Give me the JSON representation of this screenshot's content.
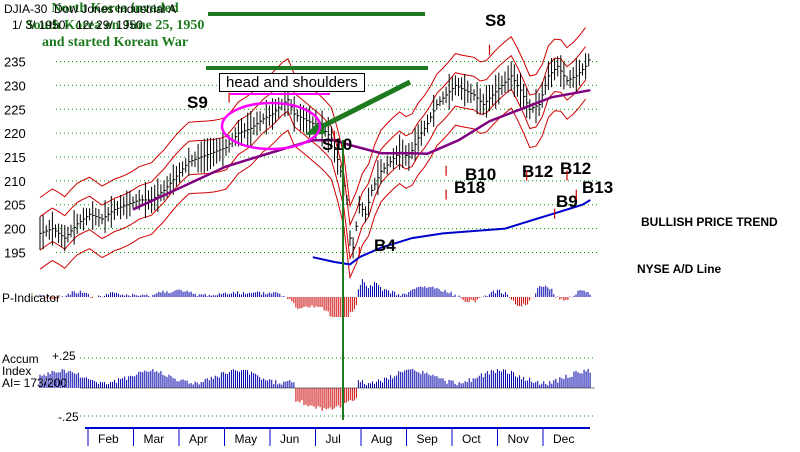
{
  "header": {
    "line1": "DJIA-30  Dow Jones Industrial A",
    "line2": "1/ 3/ 1950-  12/ 29/ 1950"
  },
  "annotation_note": {
    "line1": "North Korea invaded",
    "line2": "South Korea on June 25, 1950",
    "line3": "and started Korean War"
  },
  "pattern_label": "head and shoulders",
  "signal_labels": [
    "S8",
    "S9",
    "S10",
    "B4",
    "B10",
    "B18",
    "B12",
    "B12",
    "B9",
    "B13"
  ],
  "side_labels": {
    "trend": "BULLISH PRICE TREND",
    "ad_line": "NYSE A/D Line"
  },
  "panel_labels": {
    "pindicator": "P-Indicator",
    "accum": "Accum\nIndex\nAI= 173/200",
    "accum_top": "+.25",
    "accum_bottom": "-.25"
  },
  "colors": {
    "price": "#000000",
    "bands": "#d00000",
    "moving_average": "#800080",
    "ad_line": "#0000cc",
    "positive_bars": "#0000aa",
    "negative_bars": "#cc0000",
    "annotation_green": "#1e7a1e",
    "circle_magenta": "#ff00ff",
    "grid_green": "#009900"
  },
  "chart_data": {
    "type": "line",
    "title": "DJIA-30  Dow Jones Industrial A",
    "x": [
      "Feb",
      "Mar",
      "Apr",
      "May",
      "Jun",
      "Jul",
      "Aug",
      "Sep",
      "Oct",
      "Nov",
      "Dec"
    ],
    "y_ticks": [
      195,
      200,
      205,
      210,
      215,
      220,
      225,
      230,
      235
    ],
    "ylim": [
      193,
      237
    ],
    "grid": true,
    "series": [
      {
        "values": [
          [
            0,
            199
          ],
          [
            8,
            200
          ],
          [
            16,
            198
          ],
          [
            24,
            201
          ],
          [
            32,
            203
          ],
          [
            40,
            202
          ],
          [
            48,
            204
          ],
          [
            56,
            205
          ],
          [
            64,
            206
          ],
          [
            72,
            206
          ],
          [
            80,
            208
          ],
          [
            88,
            211
          ],
          [
            96,
            214
          ],
          [
            104,
            215
          ],
          [
            112,
            216
          ],
          [
            120,
            217
          ],
          [
            128,
            220
          ],
          [
            136,
            221
          ],
          [
            144,
            223
          ],
          [
            150,
            224
          ],
          [
            156,
            226
          ],
          [
            160,
            227
          ],
          [
            164,
            224
          ],
          [
            170,
            223
          ],
          [
            176,
            222
          ],
          [
            182,
            221
          ],
          [
            188,
            219
          ],
          [
            190,
            217
          ],
          [
            194,
            212
          ],
          [
            198,
            206
          ],
          [
            200,
            198
          ],
          [
            202,
            196
          ],
          [
            206,
            205
          ],
          [
            210,
            203
          ],
          [
            214,
            208
          ],
          [
            220,
            212
          ],
          [
            226,
            214
          ],
          [
            232,
            216
          ],
          [
            238,
            215
          ],
          [
            244,
            219
          ],
          [
            250,
            222
          ],
          [
            256,
            226
          ],
          [
            262,
            228
          ],
          [
            268,
            230
          ],
          [
            274,
            229
          ],
          [
            280,
            228
          ],
          [
            286,
            226
          ],
          [
            292,
            228
          ],
          [
            298,
            230
          ],
          [
            304,
            232
          ],
          [
            310,
            229
          ],
          [
            316,
            225
          ],
          [
            322,
            226
          ],
          [
            328,
            232
          ],
          [
            334,
            234
          ],
          [
            340,
            231
          ],
          [
            346,
            232
          ],
          [
            352,
            234
          ],
          [
            355,
            236
          ]
        ]
      },
      {
        "values": [
          [
            60,
            204
          ],
          [
            80,
            207
          ],
          [
            100,
            210
          ],
          [
            120,
            213
          ],
          [
            140,
            215
          ],
          [
            160,
            217
          ],
          [
            176,
            218.5
          ],
          [
            190,
            218.5
          ],
          [
            200,
            217.5
          ],
          [
            220,
            215.8
          ],
          [
            240,
            215.8
          ],
          [
            250,
            215.7
          ],
          [
            270,
            218.5
          ],
          [
            290,
            222.5
          ],
          [
            310,
            225
          ],
          [
            330,
            227.5
          ],
          [
            355,
            229
          ]
        ]
      },
      {
        "name": "NYSE A/D Line",
        "values": [
          [
            176,
            194
          ],
          [
            190,
            193
          ],
          [
            200,
            192.5
          ],
          [
            206,
            194
          ],
          [
            220,
            196
          ],
          [
            240,
            198
          ],
          [
            260,
            199
          ],
          [
            280,
            199.5
          ],
          [
            300,
            200
          ],
          [
            310,
            201
          ],
          [
            320,
            202
          ],
          [
            330,
            203
          ],
          [
            340,
            204
          ],
          [
            350,
            205
          ],
          [
            355,
            206
          ]
        ]
      }
    ],
    "signals": [
      {
        "label": "S9",
        "x": 122,
        "y": 226
      },
      {
        "label": "S10",
        "x": 190,
        "y": 218
      },
      {
        "label": "B4",
        "x": 206,
        "y": 197
      },
      {
        "label": "S8",
        "x": 290,
        "y": 236
      },
      {
        "label": "B10",
        "x": 262,
        "y": 214
      },
      {
        "label": "B18",
        "x": 262,
        "y": 209
      },
      {
        "label": "B12",
        "x": 314,
        "y": 213
      },
      {
        "label": "B12",
        "x": 340,
        "y": 213
      },
      {
        "label": "B9",
        "x": 332,
        "y": 205
      },
      {
        "label": "B13",
        "x": 346,
        "y": 209
      }
    ]
  }
}
